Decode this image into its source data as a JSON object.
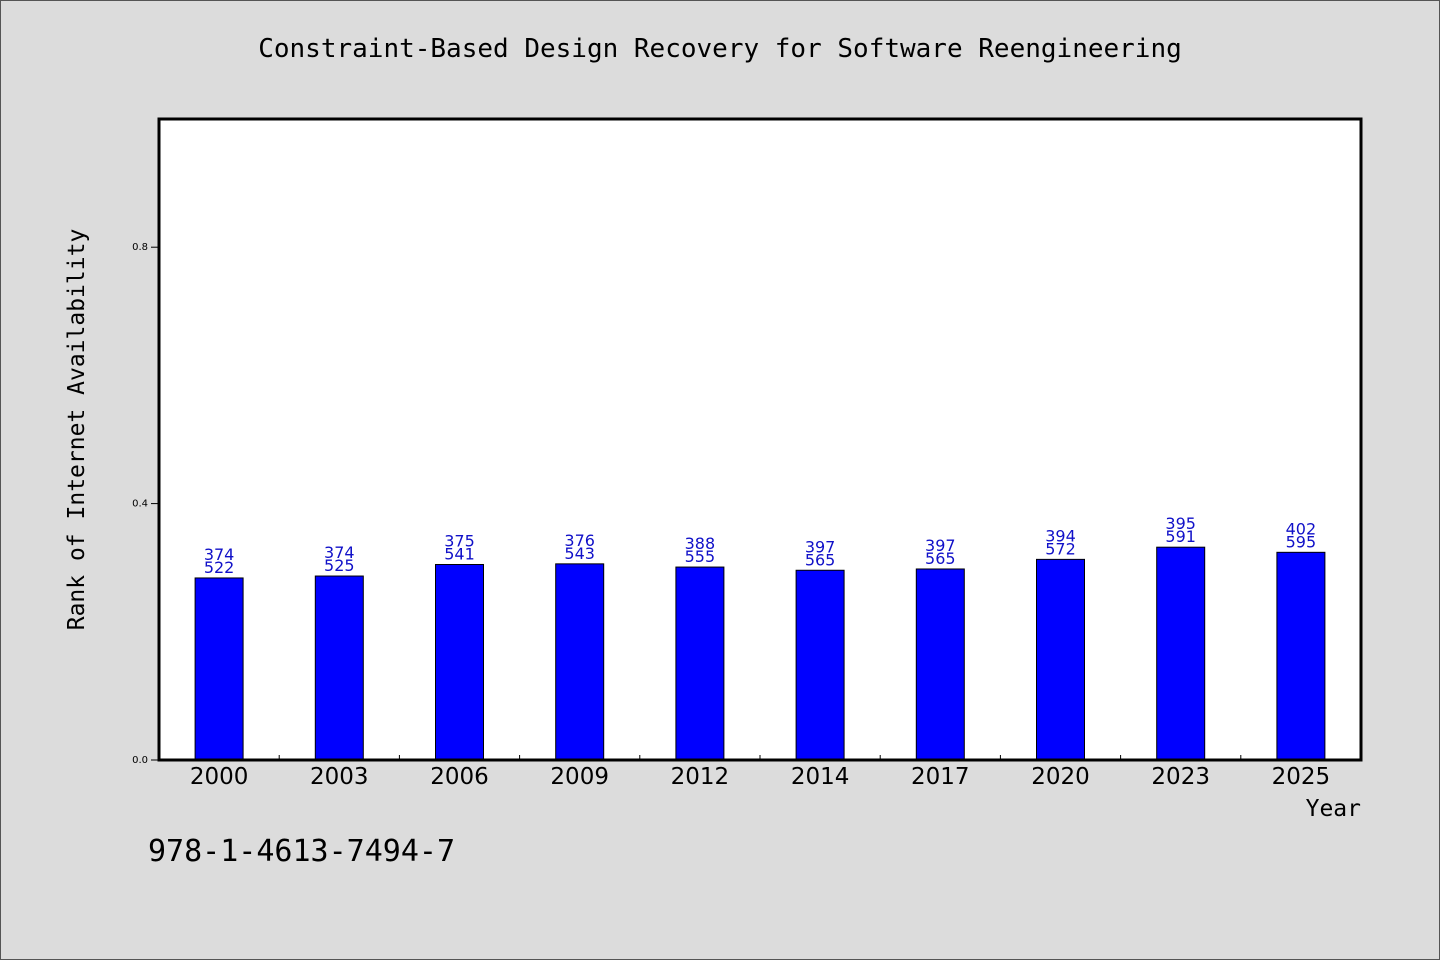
{
  "title": "Constraint-Based Design Recovery for Software Reengineering",
  "isbn": "978-1-4613-7494-7",
  "chart_data": {
    "type": "bar",
    "title": "Constraint-Based Design Recovery for Software Reengineering",
    "xlabel": "Year",
    "ylabel": "Rank of Internet Availability",
    "categories": [
      "2000",
      "2003",
      "2006",
      "2009",
      "2012",
      "2014",
      "2017",
      "2020",
      "2023",
      "2025"
    ],
    "values": [
      0.284,
      0.287,
      0.305,
      0.306,
      0.301,
      0.296,
      0.298,
      0.313,
      0.332,
      0.324
    ],
    "data_labels_top": [
      "374",
      "374",
      "375",
      "376",
      "388",
      "397",
      "397",
      "394",
      "395",
      "402"
    ],
    "data_labels_bottom": [
      "522",
      "525",
      "541",
      "543",
      "555",
      "565",
      "565",
      "572",
      "591",
      "595"
    ],
    "ylim": [
      0,
      1.0
    ],
    "yticks": [
      0.0,
      0.4,
      0.8
    ],
    "ytick_labels": [
      "0.0",
      "0.4",
      "0.8"
    ],
    "grid": false,
    "legend": "none",
    "colors": {
      "bar": "#0000ff",
      "data_label": "#1010c8",
      "background": "#dcdcdc",
      "plot_area": "#ffffff"
    }
  }
}
